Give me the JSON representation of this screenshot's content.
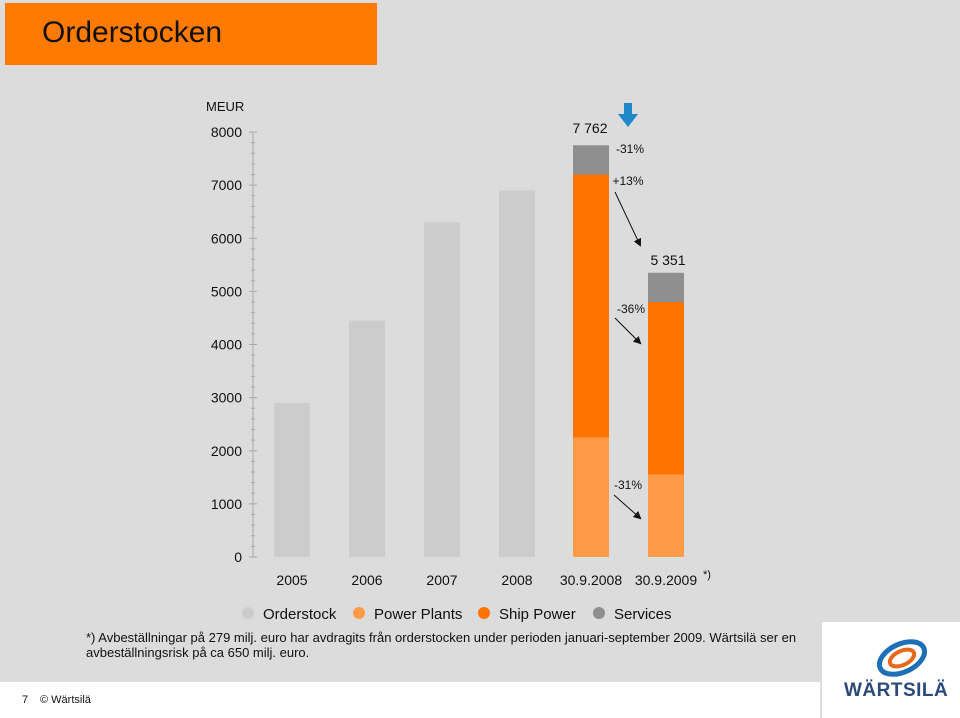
{
  "slide": {
    "title": "Orderstocken",
    "note": "*) Avbeställningar på 279 milj. euro har avdragits från orderstocken under perioden januari-september 2009. Wärtsilä ser en avbeställningsrisk på ca 650 milj. euro.",
    "page_number": "7",
    "copyright": "© Wärtsilä",
    "logo_text": "WÄRTSILÄ"
  },
  "colors": {
    "title_bg": "#ff7a00",
    "orderstock": "#cccccc",
    "power_plants": "#ff9a47",
    "ship_power": "#ff7300",
    "services": "#8f8f8f",
    "arrow_blue": "#1e88c8"
  },
  "chart_data": {
    "type": "bar",
    "unit_label": "MEUR",
    "ylim": [
      0,
      8000
    ],
    "yticks": [
      "8000",
      "7000",
      "6000",
      "5000",
      "4000",
      "3000",
      "2000",
      "1000",
      "0"
    ],
    "categories": [
      "2005",
      "2006",
      "2007",
      "2008",
      "30.9.2008",
      "30.9.2009"
    ],
    "category_suffix_last": "*)",
    "series": [
      {
        "name": "Orderstock",
        "color": "#cccccc",
        "values": [
          2900,
          4450,
          6300,
          6900,
          null,
          null
        ]
      },
      {
        "name": "Power Plants",
        "color": "#ff9a47",
        "values": [
          null,
          null,
          null,
          null,
          2250,
          1550
        ]
      },
      {
        "name": "Ship Power",
        "color": "#ff7300",
        "values": [
          null,
          null,
          null,
          null,
          4950,
          3250
        ]
      },
      {
        "name": "Services",
        "color": "#8f8f8f",
        "values": [
          null,
          null,
          null,
          null,
          550,
          550
        ]
      }
    ],
    "bar_totals": [
      {
        "category": "30.9.2008",
        "label": "7 762"
      },
      {
        "category": "30.9.2009",
        "label": "5 351"
      }
    ],
    "annotations": [
      "-31%",
      "+13%",
      "-36%",
      "-31%"
    ],
    "legend": [
      "Orderstock",
      "Power Plants",
      "Ship Power",
      "Services"
    ],
    "legend_position": "bottom"
  }
}
